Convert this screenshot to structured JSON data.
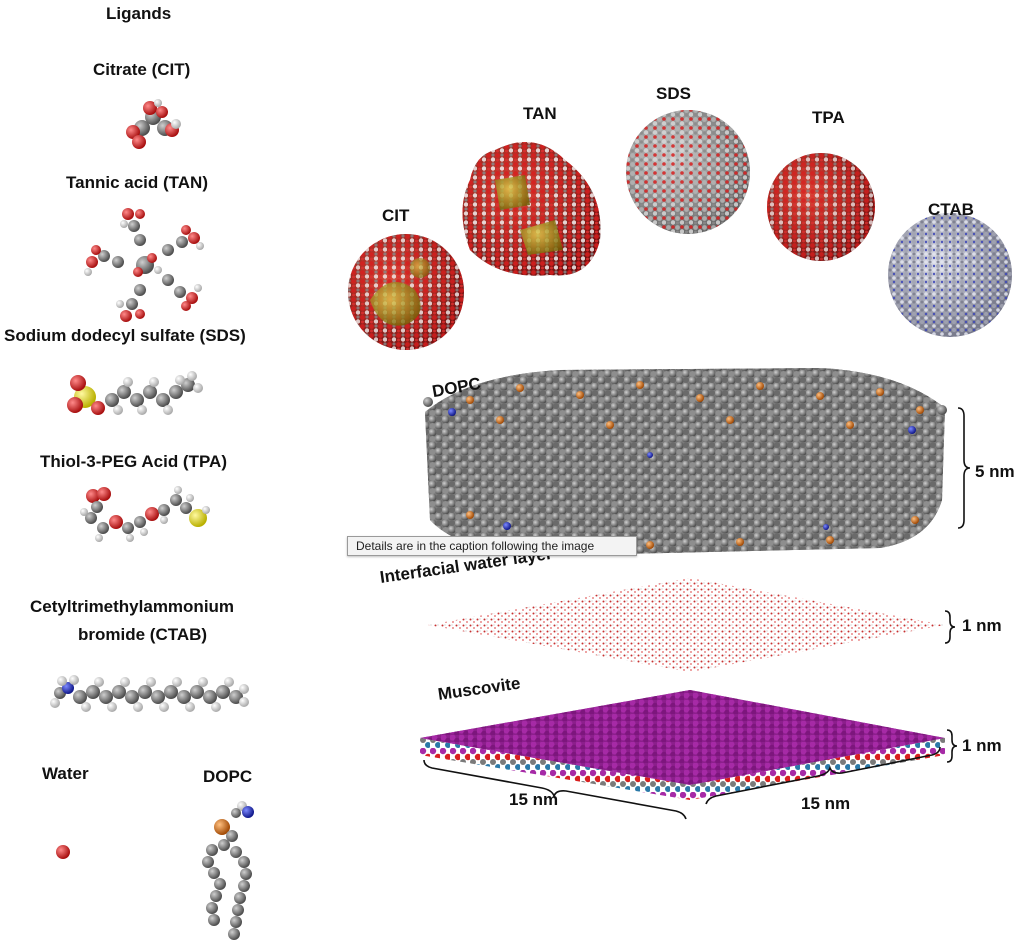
{
  "ligands_panel": {
    "heading": "Ligands",
    "items": [
      {
        "name": "Citrate (CIT)"
      },
      {
        "name": "Tannic acid (TAN)"
      },
      {
        "name": "Sodium dodecyl sulfate (SDS)"
      },
      {
        "name": "Thiol-3-PEG Acid (TPA)"
      },
      {
        "name_line1": "Cetyltrimethylammonium",
        "name_line2": "bromide (CTAB)"
      }
    ],
    "water_label": "Water",
    "dopc_label": "DOPC"
  },
  "nanoparticles": [
    {
      "label": "CIT"
    },
    {
      "label": "TAN"
    },
    {
      "label": "SDS"
    },
    {
      "label": "TPA"
    },
    {
      "label": "CTAB"
    }
  ],
  "layers": {
    "membrane_label": "DOPC",
    "membrane_thickness": "5 nm",
    "water_label": "Interfacial water layer",
    "water_thickness": "1 nm",
    "mineral_label": "Muscovite",
    "mineral_thickness": "1 nm",
    "width_left": "15 nm",
    "width_right": "15 nm"
  },
  "tooltip": "Details are in the caption following the image",
  "colors": {
    "oxygen": "#d81f1f",
    "carbon": "#7f7f7f",
    "hydrogen": "#e8e8e8",
    "sulfur": "#e8e02a",
    "nitrogen": "#1f2fd0",
    "phosphorus": "#d9731e",
    "gold_core": "#b39b1a",
    "muscovite": "#9b1f9b"
  }
}
